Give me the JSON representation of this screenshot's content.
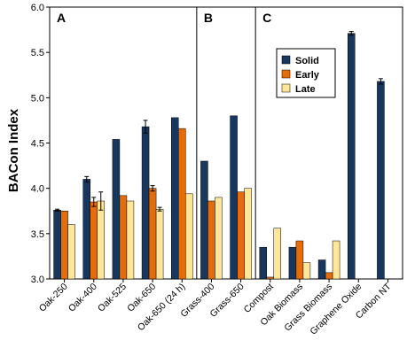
{
  "chart_data": {
    "type": "bar",
    "ylabel": "BACon Index",
    "ylim": [
      3.0,
      6.0
    ],
    "yticks": [
      "3.0",
      "3.5",
      "4.0",
      "4.5",
      "5.0",
      "5.5",
      "6.0"
    ],
    "grid": false,
    "legend_position": "top-right of panel C",
    "panels": [
      {
        "label": "A",
        "start": 0,
        "end": 5
      },
      {
        "label": "B",
        "start": 5,
        "end": 7
      },
      {
        "label": "C",
        "start": 7,
        "end": 12
      }
    ],
    "categories": [
      "Oak-250",
      "Oak-400",
      "Oak-525",
      "Oak-650",
      "Oak-650 (24 h)",
      "Grass-400",
      "Grass-650",
      "Compost",
      "Oak Biomass",
      "Grass Biomass",
      "Graphene Oxide",
      "Carbon NT"
    ],
    "series": [
      {
        "name": "Solid",
        "color": "#17375e",
        "values": [
          3.76,
          4.1,
          4.54,
          4.68,
          4.78,
          4.3,
          4.8,
          3.35,
          3.35,
          3.21,
          5.71,
          5.18
        ],
        "errors": [
          0.01,
          0.03,
          0,
          0.07,
          0,
          0,
          0,
          0,
          0,
          0,
          0.02,
          0.03
        ]
      },
      {
        "name": "Early",
        "color": "#e46c0a",
        "values": [
          3.75,
          3.85,
          3.92,
          4.0,
          4.66,
          3.86,
          3.96,
          3.02,
          3.42,
          3.07,
          null,
          null
        ],
        "errors": [
          0,
          0.05,
          0,
          0.03,
          0,
          0,
          0,
          0,
          0,
          0,
          0,
          0
        ]
      },
      {
        "name": "Late",
        "color": "#ffe699",
        "values": [
          3.6,
          3.86,
          3.86,
          3.77,
          3.94,
          3.9,
          4.0,
          3.56,
          3.18,
          3.42,
          null,
          null
        ],
        "errors": [
          0,
          0.1,
          0,
          0.02,
          0,
          0,
          0,
          0,
          0,
          0,
          0,
          0
        ]
      }
    ]
  }
}
